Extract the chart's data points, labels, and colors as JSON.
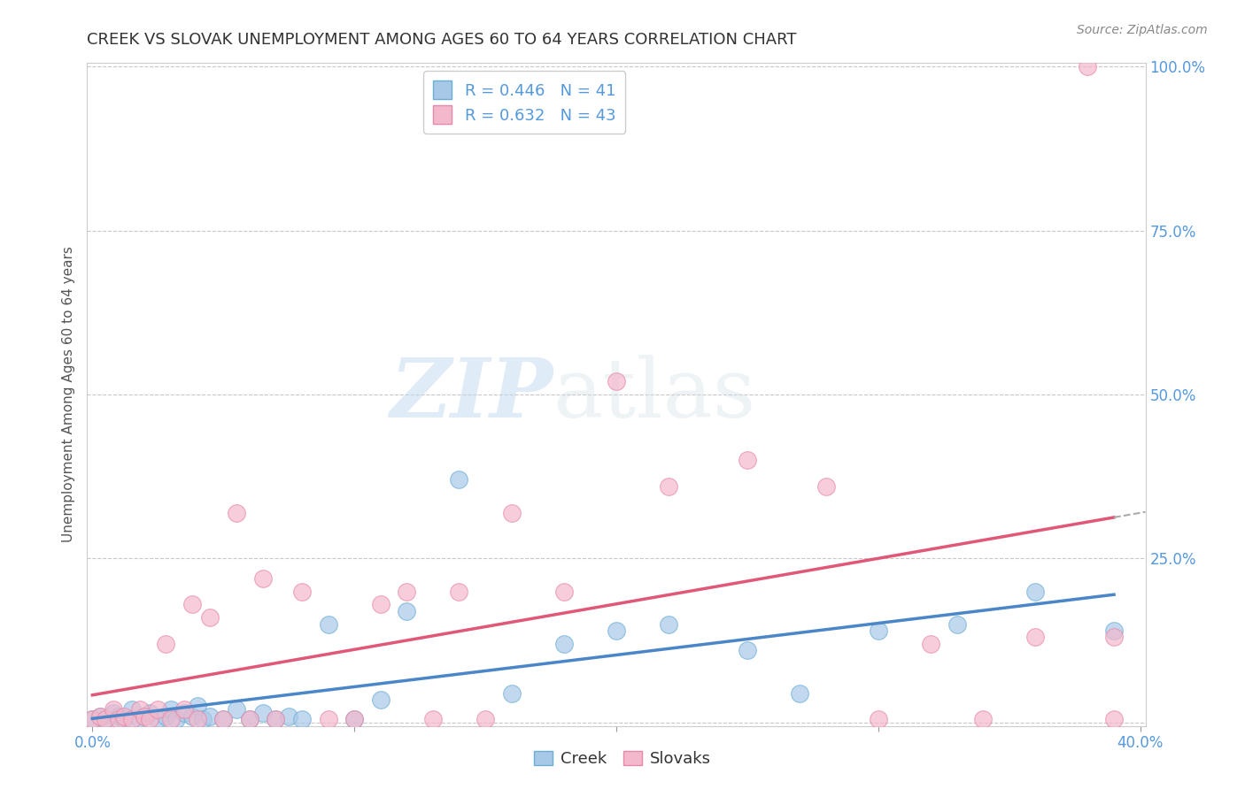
{
  "title": "CREEK VS SLOVAK UNEMPLOYMENT AMONG AGES 60 TO 64 YEARS CORRELATION CHART",
  "source": "Source: ZipAtlas.com",
  "ylabel": "Unemployment Among Ages 60 to 64 years",
  "xlim": [
    -0.002,
    0.402
  ],
  "ylim": [
    -0.005,
    1.005
  ],
  "xticks": [
    0.0,
    0.1,
    0.2,
    0.3,
    0.4
  ],
  "xticklabels": [
    "0.0%",
    "",
    "",
    "",
    "40.0%"
  ],
  "yticks": [
    0.0,
    0.25,
    0.5,
    0.75,
    1.0
  ],
  "yticklabels": [
    "",
    "25.0%",
    "50.0%",
    "75.0%",
    "100.0%"
  ],
  "creek_R": 0.446,
  "creek_N": 41,
  "slovak_R": 0.632,
  "slovak_N": 43,
  "creek_color": "#a8c8e8",
  "creek_edge_color": "#6aaed6",
  "creek_line_color": "#4a86c8",
  "slovak_color": "#f4b8cc",
  "slovak_edge_color": "#e888a8",
  "slovak_line_color": "#e05878",
  "grid_color": "#c8c8c8",
  "tick_color": "#5599dd",
  "creek_x": [
    0.0,
    0.003,
    0.005,
    0.008,
    0.01,
    0.012,
    0.015,
    0.018,
    0.02,
    0.022,
    0.025,
    0.028,
    0.03,
    0.032,
    0.035,
    0.038,
    0.04,
    0.042,
    0.045,
    0.05,
    0.055,
    0.06,
    0.065,
    0.07,
    0.075,
    0.08,
    0.09,
    0.1,
    0.11,
    0.12,
    0.14,
    0.16,
    0.18,
    0.2,
    0.22,
    0.25,
    0.27,
    0.3,
    0.33,
    0.36,
    0.39
  ],
  "creek_y": [
    0.005,
    0.01,
    0.005,
    0.015,
    0.01,
    0.005,
    0.02,
    0.005,
    0.01,
    0.015,
    0.005,
    0.01,
    0.02,
    0.005,
    0.015,
    0.01,
    0.025,
    0.005,
    0.01,
    0.005,
    0.02,
    0.005,
    0.015,
    0.005,
    0.01,
    0.005,
    0.15,
    0.005,
    0.035,
    0.17,
    0.37,
    0.045,
    0.12,
    0.14,
    0.15,
    0.11,
    0.045,
    0.14,
    0.15,
    0.2,
    0.14
  ],
  "slovak_x": [
    0.0,
    0.003,
    0.005,
    0.008,
    0.01,
    0.012,
    0.015,
    0.018,
    0.02,
    0.022,
    0.025,
    0.028,
    0.03,
    0.035,
    0.038,
    0.04,
    0.045,
    0.05,
    0.055,
    0.06,
    0.065,
    0.07,
    0.08,
    0.09,
    0.1,
    0.11,
    0.12,
    0.13,
    0.14,
    0.15,
    0.16,
    0.18,
    0.2,
    0.22,
    0.25,
    0.28,
    0.3,
    0.32,
    0.34,
    0.36,
    0.38,
    0.39,
    0.39
  ],
  "slovak_y": [
    0.005,
    0.01,
    0.005,
    0.02,
    0.005,
    0.01,
    0.005,
    0.02,
    0.01,
    0.005,
    0.02,
    0.12,
    0.005,
    0.02,
    0.18,
    0.005,
    0.16,
    0.005,
    0.32,
    0.005,
    0.22,
    0.005,
    0.2,
    0.005,
    0.005,
    0.18,
    0.2,
    0.005,
    0.2,
    0.005,
    0.32,
    0.2,
    0.52,
    0.36,
    0.4,
    0.36,
    0.005,
    0.12,
    0.005,
    0.13,
    1.0,
    0.005,
    0.13
  ],
  "watermark_zip": "ZIP",
  "watermark_atlas": "atlas",
  "title_fontsize": 13,
  "label_fontsize": 11,
  "tick_fontsize": 12,
  "legend_fontsize": 13,
  "source_fontsize": 10
}
